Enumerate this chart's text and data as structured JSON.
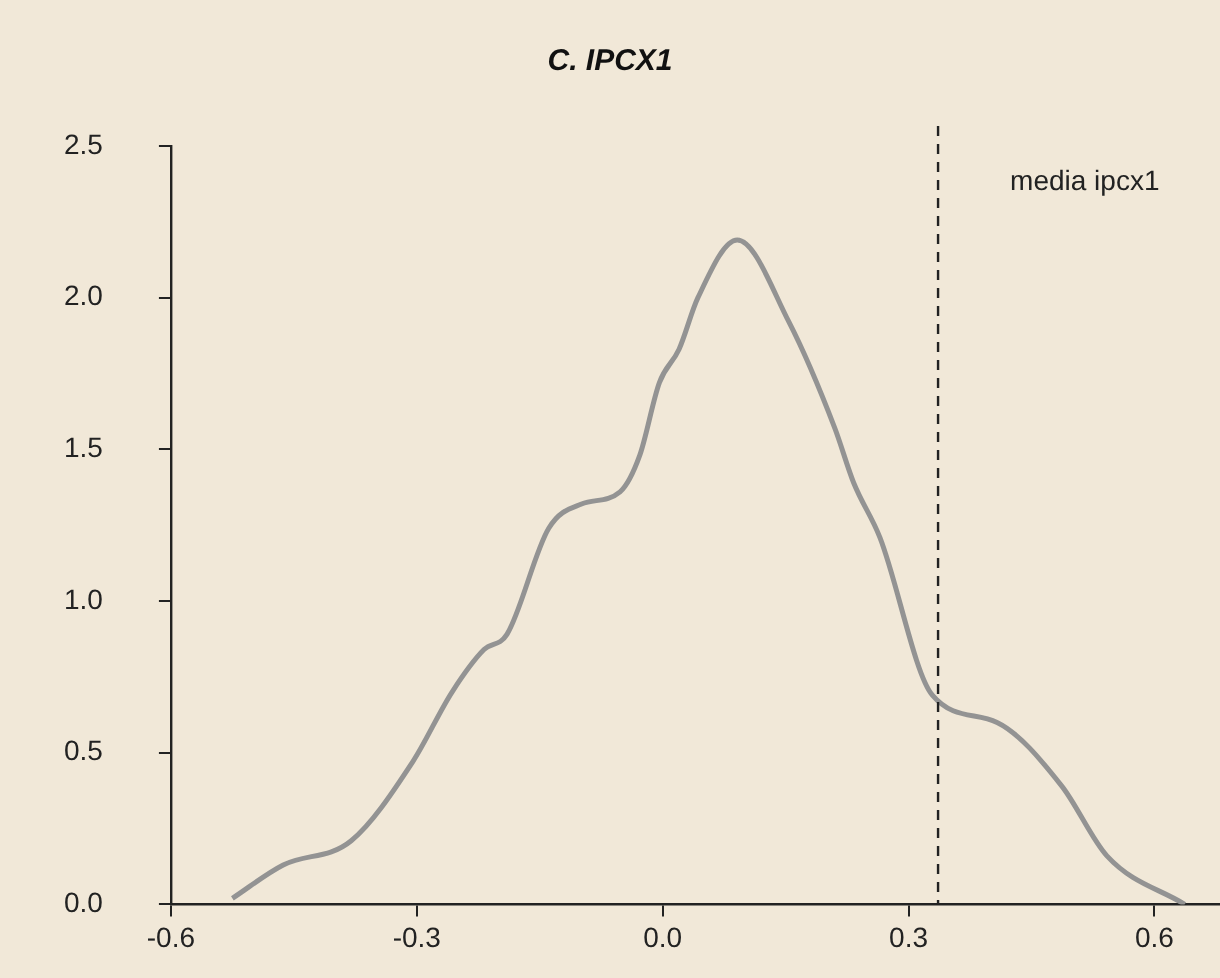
{
  "chart_data": {
    "type": "line",
    "title": "C. IPCX1",
    "x": [
      -0.525,
      -0.463,
      -0.38,
      -0.305,
      -0.257,
      -0.218,
      -0.19,
      -0.139,
      -0.099,
      -0.052,
      -0.028,
      -0.004,
      0.02,
      0.043,
      0.091,
      0.154,
      0.21,
      0.233,
      0.265,
      0.329,
      0.408,
      0.487,
      0.542,
      0.637
    ],
    "series": [
      {
        "color": "#939393",
        "values": [
          0.02,
          0.13,
          0.21,
          0.47,
          0.7,
          0.84,
          0.89,
          1.24,
          1.32,
          1.36,
          1.48,
          1.72,
          1.83,
          2.0,
          2.19,
          1.92,
          1.57,
          1.39,
          1.21,
          0.69,
          0.6,
          0.39,
          0.16,
          0.0
        ]
      }
    ],
    "xlim": [
      -0.6,
      0.68
    ],
    "xticks": [
      -0.6,
      -0.3,
      {
        "value": 0,
        "label": "0.0"
      },
      0.3,
      0.6
    ],
    "ylim": [
      0,
      2.5
    ],
    "yticks": [
      {
        "value": 0,
        "label": "0.0"
      },
      0.5,
      {
        "value": 1,
        "label": "1.0"
      },
      1.5,
      {
        "value": 2,
        "label": "2.0"
      },
      2.5
    ],
    "ref_lines": [
      {
        "axis": "x",
        "value": 0.336,
        "label": "media ipcx1",
        "color": "#222222",
        "line_style": "dashed"
      }
    ],
    "grid": false,
    "legend": false,
    "marker": "none",
    "line_style": "solid"
  }
}
